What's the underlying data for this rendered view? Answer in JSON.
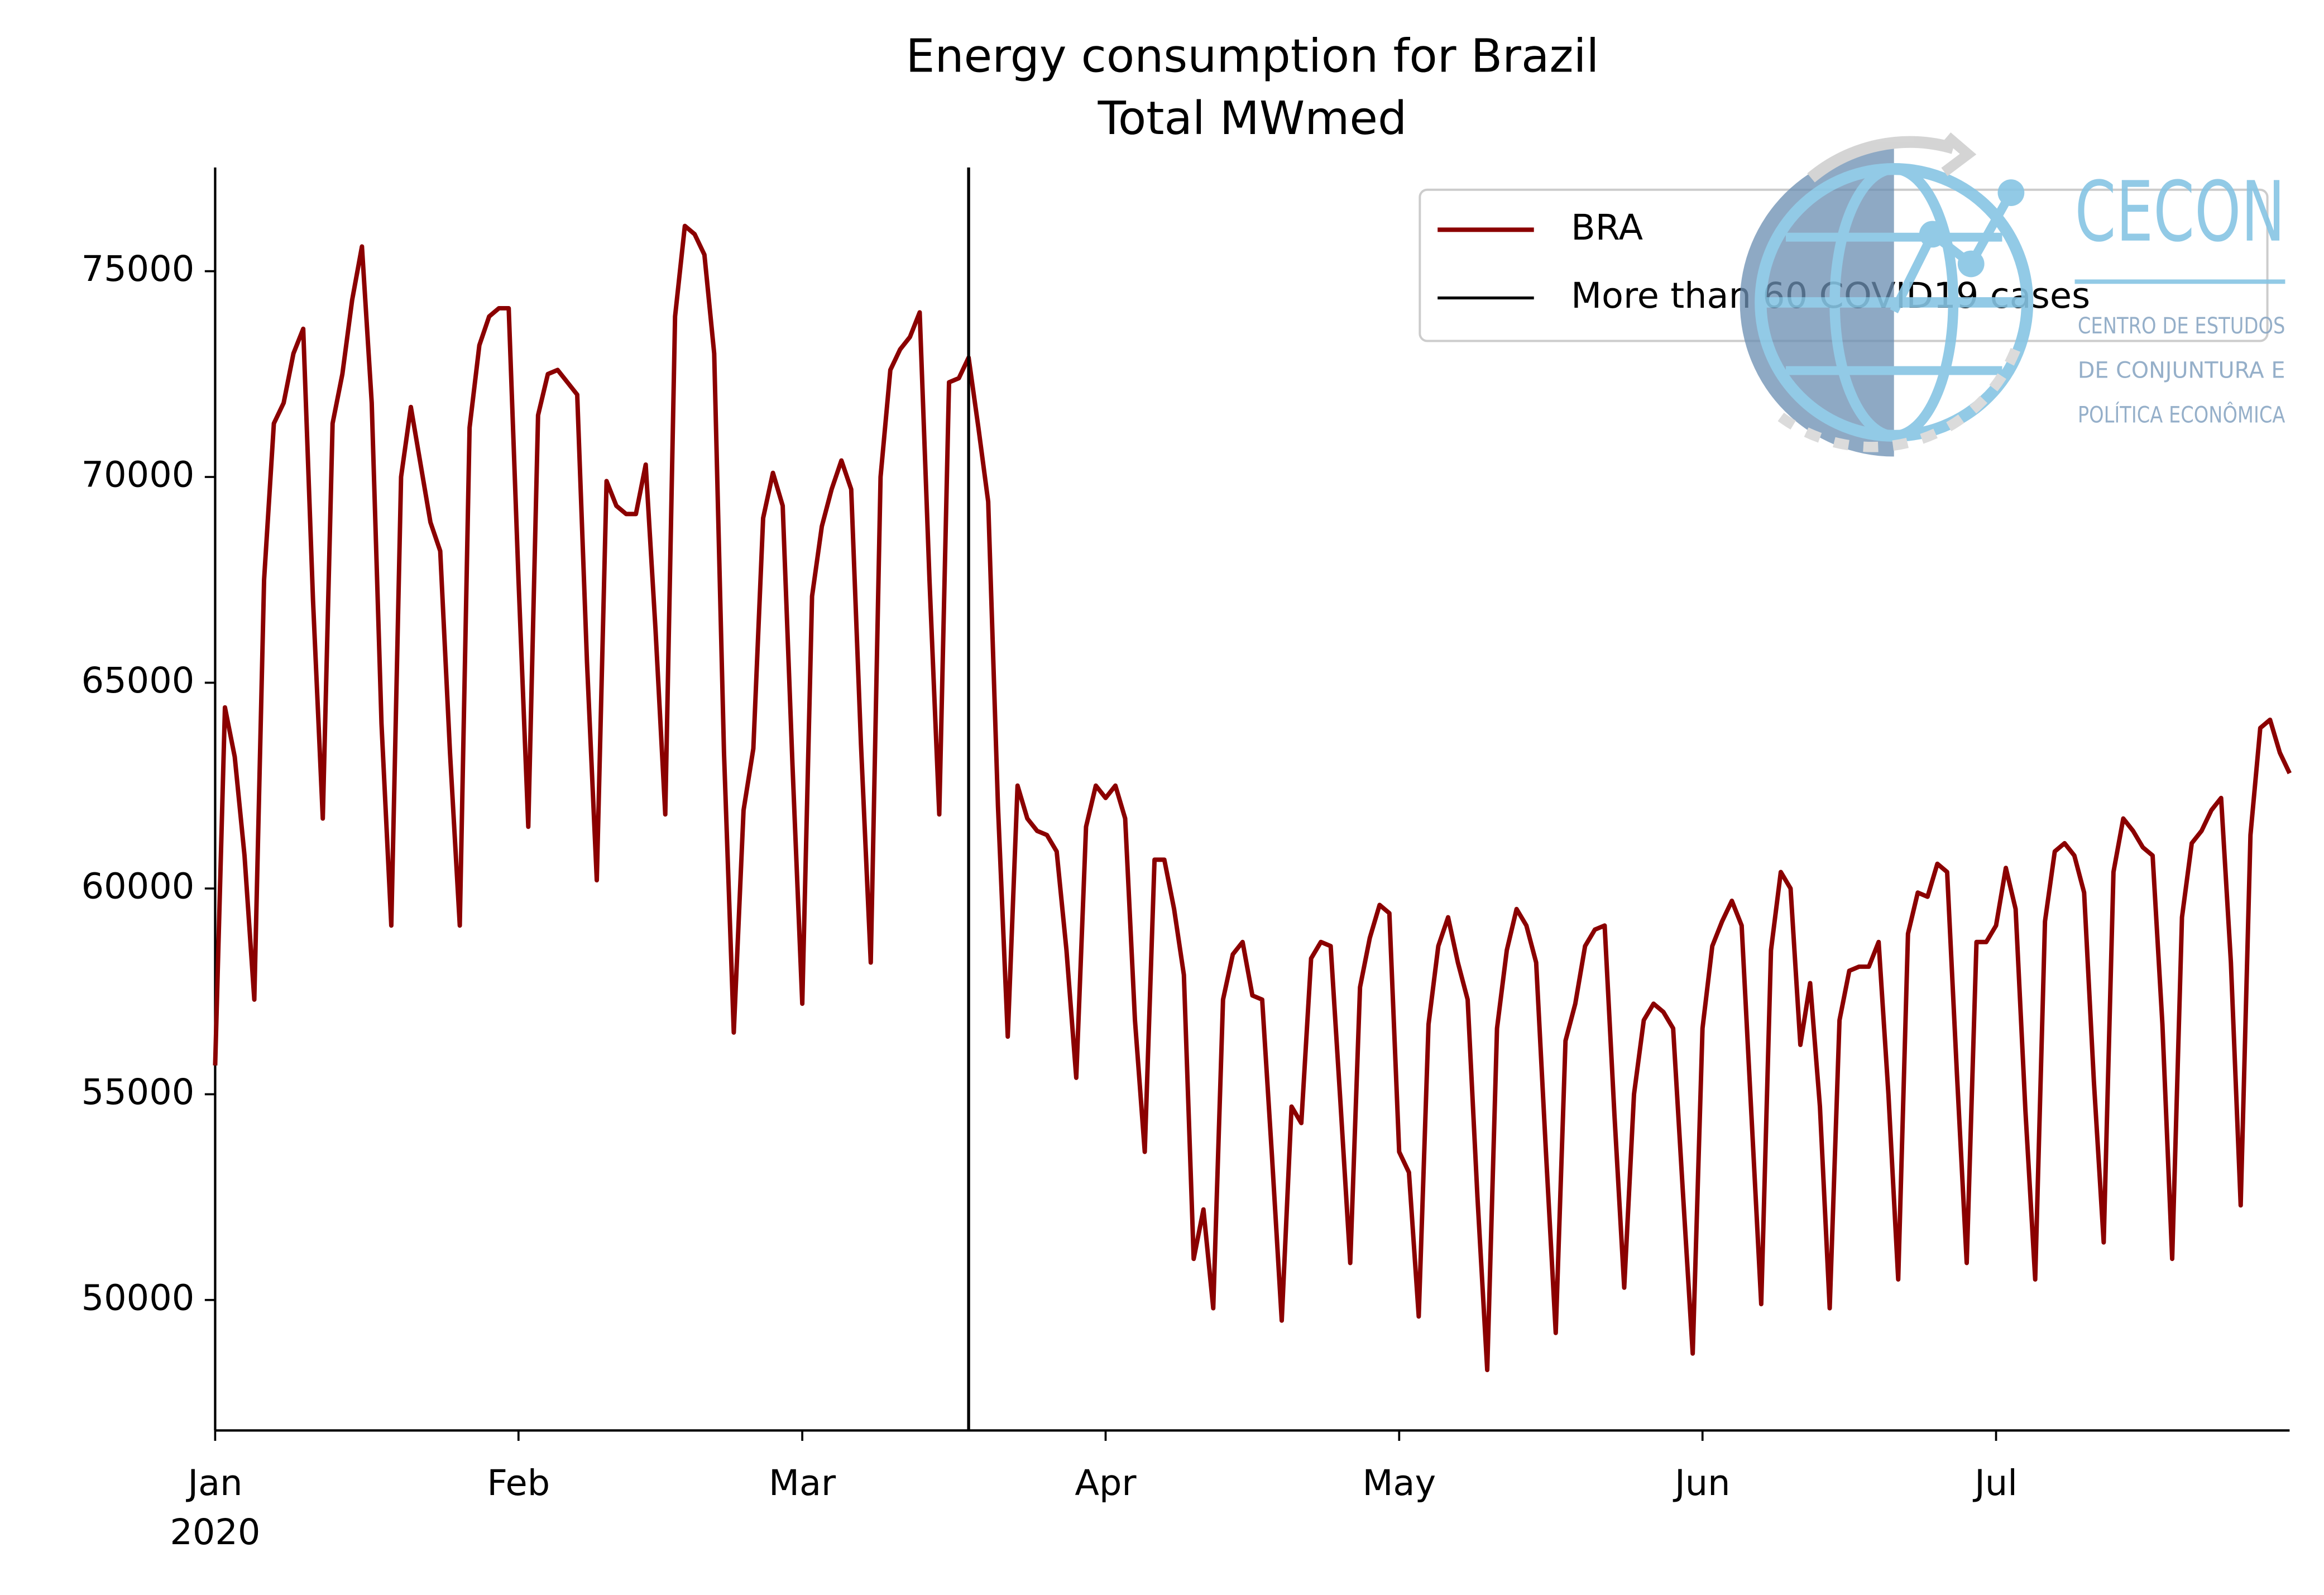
{
  "chart_data": {
    "type": "line",
    "title": "Energy consumption for Brazil",
    "subtitle": "Total MWmed",
    "x_year_label": "2020",
    "x": [
      0,
      1,
      2,
      3,
      4,
      5,
      6,
      7,
      8,
      9,
      10,
      11,
      12,
      13,
      14,
      15,
      16,
      17,
      18,
      19,
      20,
      21,
      22,
      23,
      24,
      25,
      26,
      27,
      28,
      29,
      30,
      31,
      32,
      33,
      34,
      35,
      36,
      37,
      38,
      39,
      40,
      41,
      42,
      43,
      44,
      45,
      46,
      47,
      48,
      49,
      50,
      51,
      52,
      53,
      54,
      55,
      56,
      57,
      58,
      59,
      60,
      61,
      62,
      63,
      64,
      65,
      66,
      67,
      68,
      69,
      70,
      71,
      72,
      73,
      74,
      75,
      76,
      77,
      78,
      79,
      80,
      81,
      82,
      83,
      84,
      85,
      86,
      87,
      88,
      89,
      90,
      91,
      92,
      93,
      94,
      95,
      96,
      97,
      98,
      99,
      100,
      101,
      102,
      103,
      104,
      105,
      106,
      107,
      108,
      109,
      110,
      111,
      112,
      113,
      114,
      115,
      116,
      117,
      118,
      119,
      120,
      121,
      122,
      123,
      124,
      125,
      126,
      127,
      128,
      129,
      130,
      131,
      132,
      133,
      134,
      135,
      136,
      137,
      138,
      139,
      140,
      141,
      142,
      143,
      144,
      145,
      146,
      147,
      148,
      149,
      150,
      151,
      152,
      153,
      154,
      155,
      156,
      157,
      158,
      159,
      160,
      161,
      162,
      163,
      164,
      165,
      166,
      167,
      168,
      169,
      170,
      171,
      172,
      173,
      174,
      175,
      176,
      177,
      178,
      179,
      180,
      181,
      182,
      183,
      184,
      185,
      186,
      187,
      188,
      189,
      190,
      191,
      192,
      193,
      194,
      195,
      196,
      197,
      198,
      199,
      200,
      201,
      202,
      203,
      204,
      205,
      206,
      207,
      208,
      209,
      210,
      211,
      212
    ],
    "series": [
      {
        "name": "BRA",
        "color": "#8b0000",
        "values": [
          55700,
          64400,
          63200,
          60800,
          57300,
          67500,
          71300,
          71800,
          73000,
          73600,
          67000,
          61700,
          71300,
          72500,
          74300,
          75600,
          71800,
          64000,
          59100,
          70000,
          71700,
          70300,
          68900,
          68200,
          63300,
          59100,
          71200,
          73200,
          73900,
          74100,
          74100,
          67500,
          61500,
          71500,
          72500,
          72600,
          72300,
          72000,
          65500,
          60200,
          69900,
          69300,
          69100,
          69100,
          70300,
          66300,
          61800,
          73900,
          76100,
          75900,
          75400,
          73000,
          63300,
          56500,
          61900,
          63400,
          69000,
          70100,
          69300,
          63000,
          57200,
          67100,
          68800,
          69700,
          70400,
          69700,
          63500,
          58200,
          70000,
          72600,
          73100,
          73400,
          74000,
          67500,
          61800,
          72300,
          72400,
          72900,
          71200,
          69400,
          62000,
          56400,
          62500,
          61700,
          61400,
          61300,
          60900,
          58500,
          55400,
          61500,
          62500,
          62200,
          62500,
          61700,
          56800,
          53600,
          60700,
          60700,
          59500,
          57900,
          51000,
          52200,
          49800,
          57300,
          58400,
          58700,
          57400,
          57300,
          53500,
          49500,
          54700,
          54300,
          58300,
          58700,
          58600,
          54800,
          50900,
          57600,
          58800,
          59600,
          59400,
          53600,
          53100,
          49600,
          56700,
          58600,
          59300,
          58200,
          57300,
          52500,
          48300,
          56600,
          58500,
          59500,
          59100,
          58200,
          53600,
          49200,
          56300,
          57200,
          58600,
          59000,
          59100,
          54500,
          50300,
          55000,
          56800,
          57200,
          57000,
          56600,
          52600,
          48700,
          56600,
          58600,
          59200,
          59700,
          59100,
          54500,
          49900,
          58500,
          60400,
          60000,
          56200,
          57700,
          54700,
          49800,
          56800,
          58000,
          58100,
          58100,
          58700,
          55000,
          50500,
          58900,
          59900,
          59800,
          60600,
          60400,
          55500,
          50900,
          58700,
          58700,
          59100,
          60500,
          59500,
          54600,
          50500,
          59200,
          60900,
          61100,
          60800,
          59900,
          55300,
          51400,
          60400,
          61700,
          61400,
          61000,
          60800,
          56700,
          51000,
          59300,
          61100,
          61400,
          61900,
          62200,
          58200,
          52300,
          61300,
          63900,
          64100,
          63300,
          62800
        ]
      }
    ],
    "vline": {
      "name": "More than 60 COVID19 cases",
      "x": 77,
      "color": "#000000"
    },
    "xlim": [
      0,
      212
    ],
    "xticks": [
      {
        "value": 0,
        "label": "Jan"
      },
      {
        "value": 31,
        "label": "Feb"
      },
      {
        "value": 60,
        "label": "Mar"
      },
      {
        "value": 91,
        "label": "Apr"
      },
      {
        "value": 121,
        "label": "May"
      },
      {
        "value": 152,
        "label": "Jun"
      },
      {
        "value": 182,
        "label": "Jul"
      }
    ],
    "ylim": [
      46830,
      77520
    ],
    "yticks": [
      50000,
      55000,
      60000,
      65000,
      70000,
      75000
    ],
    "legend": "upper right"
  },
  "logo": {
    "name": "CECON",
    "lines": [
      "CENTRO DE ESTUDOS",
      "DE CONJUNTURA E",
      "POLÍTICA ECONÔMICA"
    ]
  }
}
